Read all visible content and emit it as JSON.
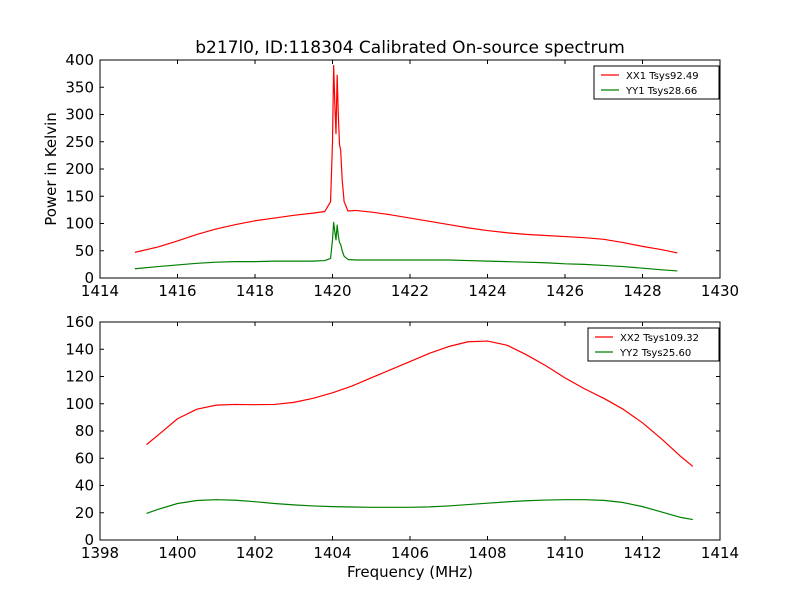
{
  "figure": {
    "title": "b217l0, ID:118304 Calibrated On-source spectrum"
  },
  "chart_data": [
    {
      "type": "line",
      "title": "b217l0, ID:118304 Calibrated On-source spectrum",
      "xlabel": "",
      "ylabel": "Power in Kelvin",
      "xlim": [
        1414,
        1430
      ],
      "ylim": [
        0,
        400
      ],
      "xticks": [
        1414,
        1416,
        1418,
        1420,
        1422,
        1424,
        1426,
        1428,
        1430
      ],
      "yticks": [
        0,
        50,
        100,
        150,
        200,
        250,
        300,
        350,
        400
      ],
      "grid": false,
      "legend_position": "top-right",
      "series": [
        {
          "name": "XX1 Tsys92.49",
          "color": "#ff0000",
          "x": [
            1414.9,
            1415.5,
            1416.0,
            1416.5,
            1417.0,
            1417.5,
            1418.0,
            1418.5,
            1419.0,
            1419.5,
            1419.8,
            1419.95,
            1420.0,
            1420.03,
            1420.06,
            1420.09,
            1420.12,
            1420.15,
            1420.18,
            1420.21,
            1420.25,
            1420.3,
            1420.4,
            1420.6,
            1421.0,
            1421.5,
            1422.0,
            1422.5,
            1423.0,
            1423.5,
            1424.0,
            1424.5,
            1425.0,
            1425.5,
            1426.0,
            1426.5,
            1427.0,
            1427.5,
            1428.0,
            1428.5,
            1428.9
          ],
          "y": [
            47,
            57,
            68,
            80,
            90,
            98,
            105,
            110,
            115,
            119,
            122,
            140,
            250,
            390,
            320,
            265,
            372,
            300,
            245,
            235,
            180,
            140,
            123,
            124,
            121,
            116,
            110,
            104,
            98,
            92,
            87,
            83,
            80,
            78,
            76,
            74,
            71,
            65,
            58,
            52,
            46
          ]
        },
        {
          "name": "YY1 Tsys28.66",
          "color": "#008000",
          "x": [
            1414.9,
            1415.5,
            1416.0,
            1416.5,
            1417.0,
            1417.5,
            1418.0,
            1418.5,
            1419.0,
            1419.5,
            1419.8,
            1419.95,
            1420.0,
            1420.03,
            1420.06,
            1420.09,
            1420.12,
            1420.15,
            1420.18,
            1420.21,
            1420.25,
            1420.3,
            1420.4,
            1420.6,
            1421.0,
            1421.5,
            1422.0,
            1422.5,
            1423.0,
            1423.5,
            1424.0,
            1424.5,
            1425.0,
            1425.5,
            1426.0,
            1426.5,
            1427.0,
            1427.5,
            1428.0,
            1428.5,
            1428.9
          ],
          "y": [
            17,
            21,
            24,
            27,
            29,
            30,
            30,
            31,
            31,
            31,
            32,
            36,
            70,
            102,
            85,
            70,
            97,
            78,
            65,
            62,
            50,
            40,
            34,
            33,
            33,
            33,
            33,
            33,
            33,
            32,
            31,
            30,
            29,
            28,
            26,
            25,
            23,
            21,
            18,
            15,
            13
          ]
        }
      ]
    },
    {
      "type": "line",
      "title": "",
      "xlabel": "Frequency (MHz)",
      "ylabel": "",
      "xlim": [
        1398,
        1414
      ],
      "ylim": [
        0,
        160
      ],
      "xticks": [
        1398,
        1400,
        1402,
        1404,
        1406,
        1408,
        1410,
        1412,
        1414
      ],
      "yticks": [
        0,
        20,
        40,
        60,
        80,
        100,
        120,
        140,
        160
      ],
      "grid": false,
      "legend_position": "top-right",
      "series": [
        {
          "name": "XX2 Tsys109.32",
          "color": "#ff0000",
          "x": [
            1399.2,
            1399.5,
            1400.0,
            1400.5,
            1401.0,
            1401.5,
            1402.0,
            1402.5,
            1403.0,
            1403.5,
            1404.0,
            1404.5,
            1405.0,
            1405.5,
            1406.0,
            1406.5,
            1407.0,
            1407.5,
            1408.0,
            1408.5,
            1409.0,
            1409.5,
            1410.0,
            1410.5,
            1411.0,
            1411.5,
            1412.0,
            1412.5,
            1413.0,
            1413.3
          ],
          "y": [
            70,
            77,
            89,
            96,
            99,
            99.5,
            99.3,
            99.5,
            101,
            104,
            108,
            113,
            119,
            125,
            131,
            137,
            142,
            145.5,
            146,
            143,
            136,
            128,
            119,
            111,
            104,
            96,
            86,
            74,
            61,
            54
          ]
        },
        {
          "name": "YY2 Tsys25.60",
          "color": "#008000",
          "x": [
            1399.2,
            1399.5,
            1400.0,
            1400.5,
            1401.0,
            1401.5,
            1402.0,
            1402.5,
            1403.0,
            1403.5,
            1404.0,
            1404.5,
            1405.0,
            1405.5,
            1406.0,
            1406.5,
            1407.0,
            1407.5,
            1408.0,
            1408.5,
            1409.0,
            1409.5,
            1410.0,
            1410.5,
            1411.0,
            1411.5,
            1412.0,
            1412.5,
            1413.0,
            1413.3
          ],
          "y": [
            19.5,
            22.5,
            26.8,
            29,
            29.6,
            29.2,
            28.1,
            26.8,
            25.8,
            25,
            24.5,
            24.2,
            24,
            24,
            24,
            24.3,
            25,
            26,
            27,
            28,
            28.8,
            29.3,
            29.6,
            29.6,
            29.1,
            27.5,
            24.5,
            20.5,
            16.5,
            15
          ]
        }
      ]
    }
  ]
}
